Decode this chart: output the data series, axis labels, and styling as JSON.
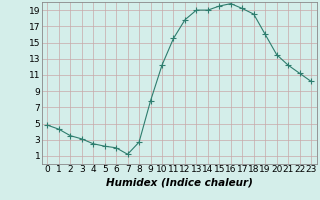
{
  "x": [
    0,
    1,
    2,
    3,
    4,
    5,
    6,
    7,
    8,
    9,
    10,
    11,
    12,
    13,
    14,
    15,
    16,
    17,
    18,
    19,
    20,
    21,
    22,
    23
  ],
  "y": [
    4.8,
    4.3,
    3.5,
    3.1,
    2.5,
    2.2,
    2.0,
    1.2,
    2.7,
    7.8,
    12.2,
    15.5,
    17.8,
    19.0,
    19.0,
    19.5,
    19.8,
    19.2,
    18.5,
    16.0,
    13.5,
    12.2,
    11.2,
    10.2
  ],
  "line_color": "#2e7d6e",
  "marker": "+",
  "marker_size": 4,
  "marker_linewidth": 0.8,
  "bg_color": "#d4eeea",
  "grid_color": "#c8a8a8",
  "xlabel": "Humidex (Indice chaleur)",
  "xlabel_style": "italic",
  "xlabel_weight": "bold",
  "xlim": [
    -0.5,
    23.5
  ],
  "ylim": [
    0,
    20
  ],
  "yticks": [
    1,
    3,
    5,
    7,
    9,
    11,
    13,
    15,
    17,
    19
  ],
  "xticks": [
    0,
    1,
    2,
    3,
    4,
    5,
    6,
    7,
    8,
    9,
    10,
    11,
    12,
    13,
    14,
    15,
    16,
    17,
    18,
    19,
    20,
    21,
    22,
    23
  ],
  "font_size": 6.5,
  "xlabel_fontsize": 7.5,
  "line_width": 0.8,
  "spine_color": "#888888"
}
